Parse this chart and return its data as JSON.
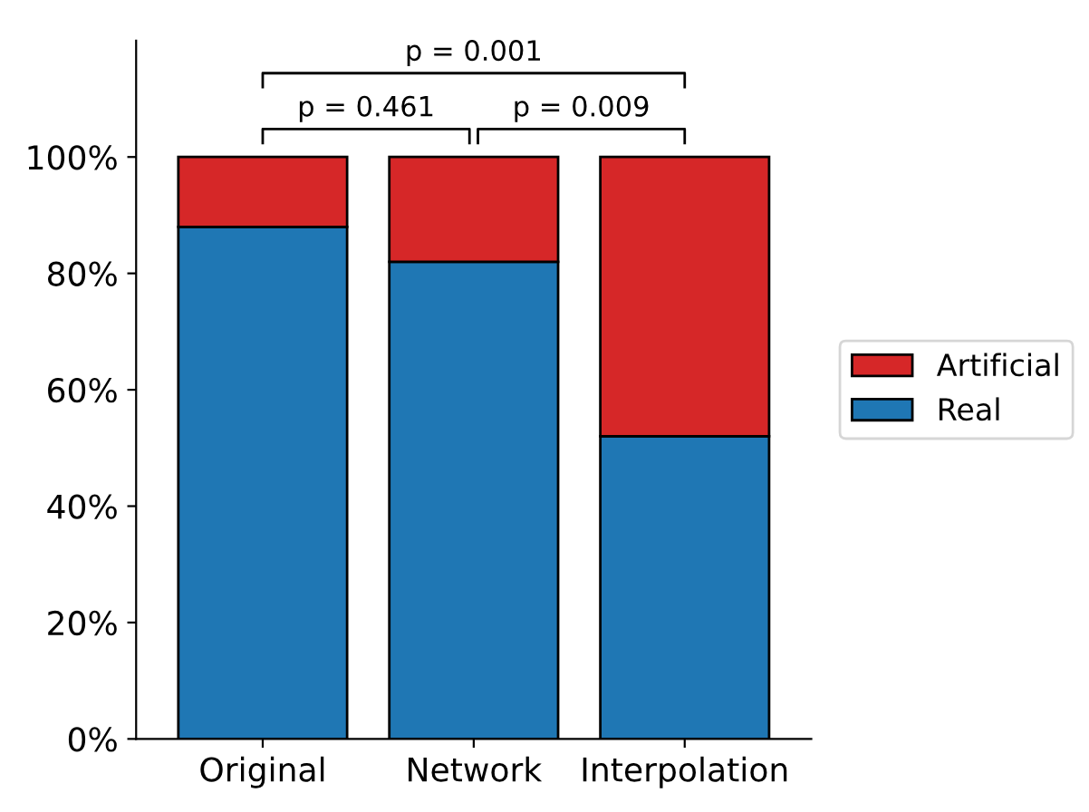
{
  "chart_data": {
    "type": "bar",
    "stacked": true,
    "categories": [
      "Original",
      "Network",
      "Interpolation"
    ],
    "series": [
      {
        "name": "Real",
        "color": "#1f77b4",
        "values": [
          88,
          82,
          52
        ]
      },
      {
        "name": "Artificial",
        "color": "#d62728",
        "values": [
          12,
          18,
          48
        ]
      }
    ],
    "ylim": [
      0,
      120
    ],
    "yticks": [
      {
        "value": 0,
        "label": "0%"
      },
      {
        "value": 20,
        "label": "20%"
      },
      {
        "value": 40,
        "label": "40%"
      },
      {
        "value": 60,
        "label": "60%"
      },
      {
        "value": 80,
        "label": "80%"
      },
      {
        "value": 100,
        "label": "100%"
      }
    ],
    "annotations": [
      "p = 0.461",
      "p = 0.009",
      "p = 0.001"
    ],
    "legend": "right",
    "grid": false
  }
}
